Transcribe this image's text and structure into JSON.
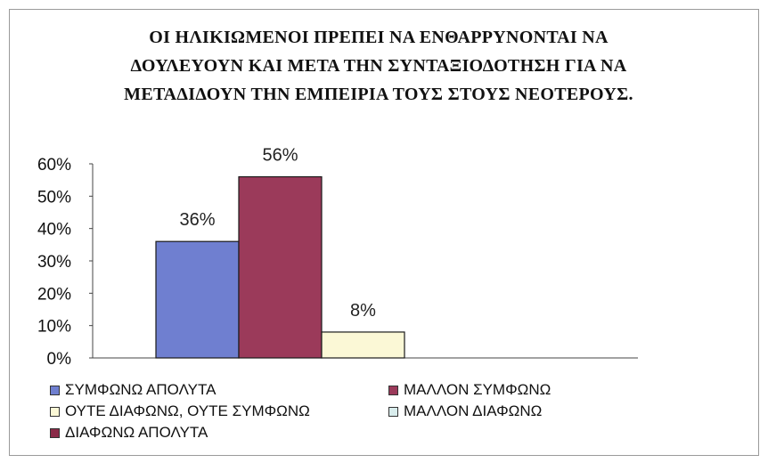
{
  "chart_data": {
    "type": "bar",
    "title": "ΟΙ ΗΛΙΚΙΩΜΕΝΟΙ ΠΡΕΠΕΙ ΝΑ ΕΝΘΑΡΡΥΝΟΝΤΑΙ ΝΑ ΔΟΥΛΕΥΟΥΝ ΚΑΙ ΜΕΤΑ ΤΗΝ ΣΥΝΤΑΞΙΟΔΟΤΗΣΗ ΓΙΑ ΝΑ ΜΕΤΑΔΙΔΟΥΝ ΤΗΝ ΕΜΠΕΙΡΙΑ ΤΟΥΣ ΣΤΟΥΣ ΝΕΟΤΕΡΟΥΣ.",
    "title_lines": [
      "ΟΙ ΗΛΙΚΙΩΜΕΝΟΙ ΠΡΕΠΕΙ ΝΑ ΕΝΘΑΡΡΥΝΟΝΤΑΙ ΝΑ",
      "ΔΟΥΛΕΥΟΥΝ ΚΑΙ ΜΕΤΑ ΤΗΝ ΣΥΝΤΑΞΙΟΔΟΤΗΣΗ ΓΙΑ ΝΑ",
      "ΜΕΤΑΔΙΔΟΥΝ ΤΗΝ ΕΜΠΕΙΡΙΑ ΤΟΥΣ ΣΤΟΥΣ ΝΕΟΤΕΡΟΥΣ."
    ],
    "ylim": [
      0,
      60
    ],
    "yticks": [
      "0%",
      "10%",
      "20%",
      "30%",
      "40%",
      "50%",
      "60%"
    ],
    "series": [
      {
        "name": "ΣΥΜΦΩΝΩ ΑΠΟΛΥΤΑ",
        "value": 36,
        "label": "36%",
        "color": "#6f7fd0"
      },
      {
        "name": "ΜΑΛΛΟΝ ΣΥΜΦΩΝΩ",
        "value": 56,
        "label": "56%",
        "color": "#9b3a5a"
      },
      {
        "name": "ΟΥΤΕ ΔΙΑΦΩΝΩ, ΟΥΤΕ ΣΥΜΦΩΝΩ",
        "value": 8,
        "label": "8%",
        "color": "#fbf8d6"
      },
      {
        "name": "ΜΑΛΛΟΝ ΔΙΑΦΩΝΩ",
        "value": 0,
        "label": "",
        "color": "#d8ecec"
      },
      {
        "name": "ΔΙΑΦΩΝΩ ΑΠΟΛΥΤΑ",
        "value": 0,
        "label": "",
        "color": "#8a2a48"
      }
    ],
    "grid": false,
    "legend_position": "bottom"
  }
}
